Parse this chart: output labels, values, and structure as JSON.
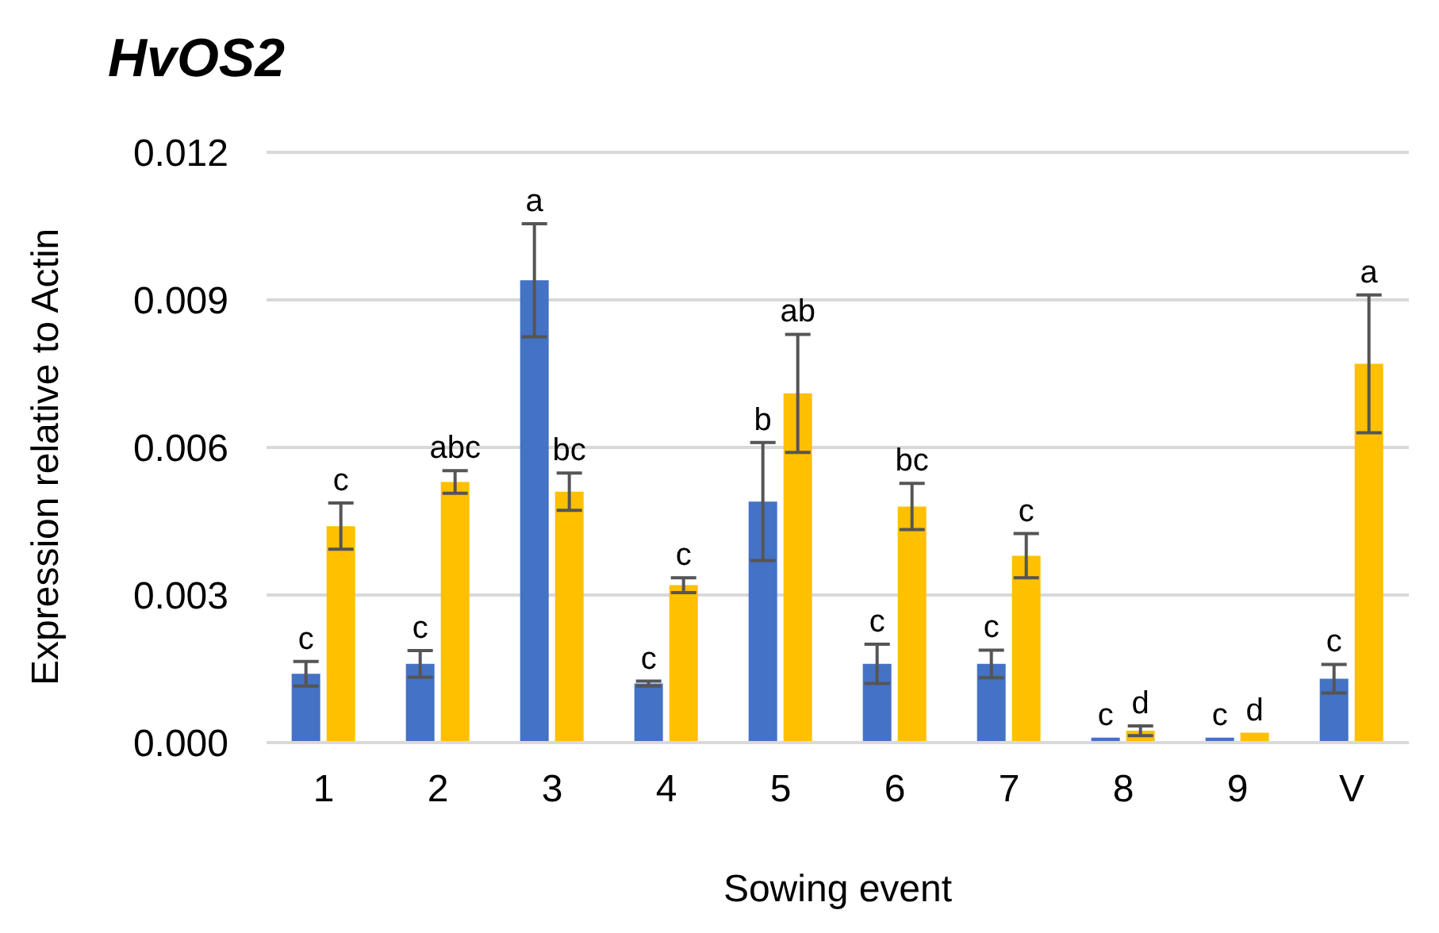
{
  "chart_data": {
    "type": "bar",
    "title": "HvOS2",
    "xlabel": "Sowing event",
    "ylabel": "Expression relative to Actin",
    "categories": [
      "1",
      "2",
      "3",
      "4",
      "5",
      "6",
      "7",
      "8",
      "9",
      "V"
    ],
    "series": [
      {
        "color": "#4472c4",
        "values": [
          0.0014,
          0.0016,
          0.0094,
          0.0012,
          0.0049,
          0.0016,
          0.0016,
          0.0001,
          0.0001,
          0.0013
        ],
        "errors": [
          0.00025,
          0.00027,
          0.00115,
          5e-05,
          0.0012,
          0.0004,
          0.00028,
          null,
          null,
          0.00029
        ],
        "value_labels": [
          "c",
          "c",
          "a",
          "c",
          "b",
          "c",
          "c",
          "c",
          "c",
          "c"
        ]
      },
      {
        "color": "#ffc000",
        "values": [
          0.0044,
          0.0053,
          0.0051,
          0.0032,
          0.0071,
          0.0048,
          0.0038,
          0.00024,
          0.0002,
          0.0077
        ],
        "errors": [
          0.00047,
          0.00023,
          0.00038,
          0.00015,
          0.0012,
          0.00047,
          0.00045,
          0.0001,
          null,
          0.0014
        ],
        "value_labels": [
          "c",
          "abc",
          "bc",
          "c",
          "ab",
          "bc",
          "c",
          "d",
          "d",
          "a"
        ]
      }
    ],
    "ylim": [
      0,
      0.012
    ],
    "yticks": [
      {
        "value": 0,
        "label": "0.000"
      },
      0.003,
      0.006,
      0.009,
      0.012
    ],
    "grid": "y",
    "legend": false
  }
}
